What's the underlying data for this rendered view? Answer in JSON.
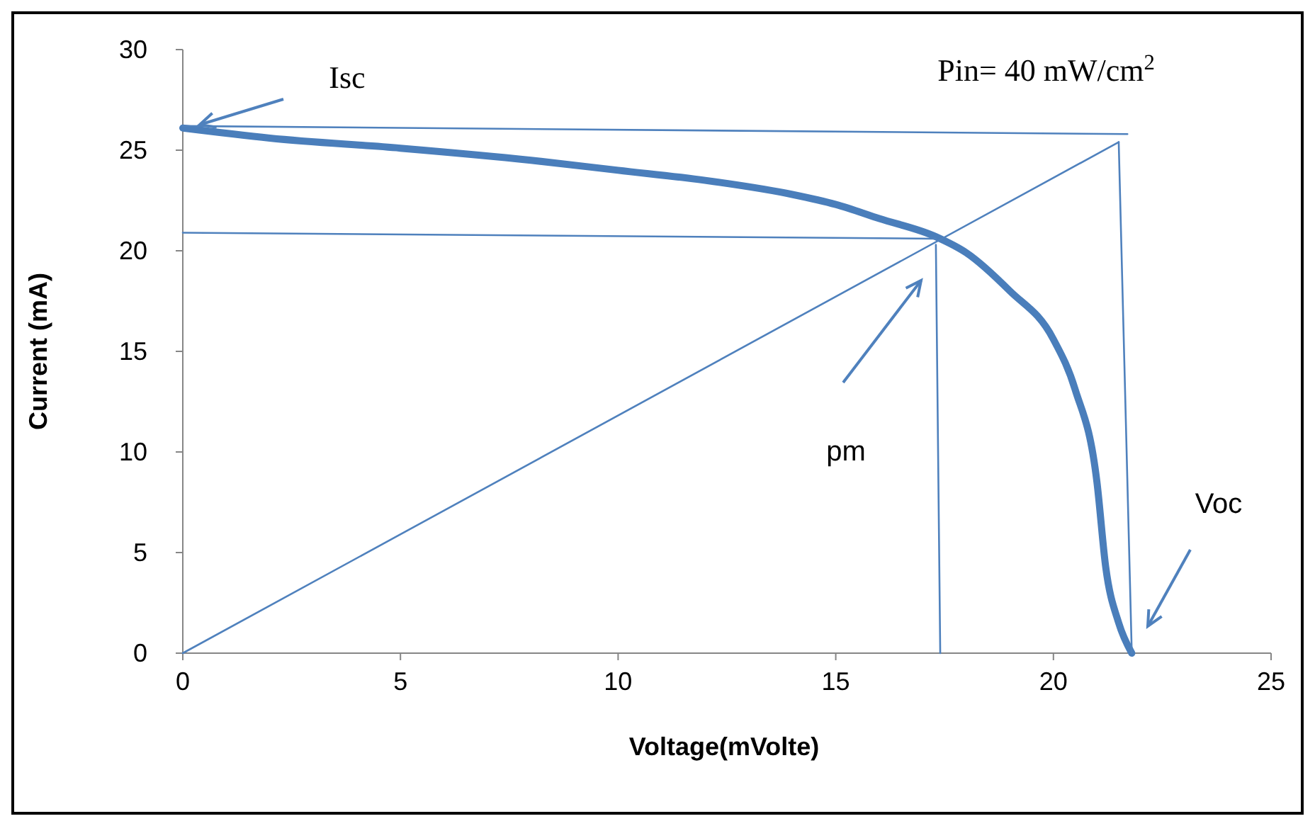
{
  "chart_data": {
    "type": "line",
    "xlabel": "Voltage(mVolte)",
    "ylabel": "Current (mA)",
    "xlim": [
      0,
      25
    ],
    "ylim": [
      0,
      30
    ],
    "xticks": [
      0,
      5,
      10,
      15,
      20,
      25
    ],
    "yticks": [
      0,
      5,
      10,
      15,
      20,
      25,
      30
    ],
    "grid": false,
    "marker": "none",
    "line_style": "solid",
    "series": [
      {
        "color": "#4a7ebb",
        "x": [
          0,
          2,
          5,
          8,
          10,
          12,
          14,
          15,
          16,
          17.3,
          18,
          19,
          20,
          20.5,
          21,
          21.2,
          21.5,
          21.8
        ],
        "values": [
          26.1,
          25.6,
          25.1,
          24.5,
          24.0,
          23.5,
          22.8,
          22.3,
          21.6,
          20.7,
          19.9,
          18,
          15.6,
          13.1,
          8.5,
          4.3,
          1.5,
          0
        ]
      },
      {
        "color": "#4f81bd",
        "x": [
          0,
          21.7
        ],
        "values": [
          26.2,
          25.8
        ]
      },
      {
        "color": "#4f81bd",
        "x": [
          0,
          17.3
        ],
        "values": [
          20.9,
          20.6
        ]
      },
      {
        "color": "#4f81bd",
        "x": [
          0,
          21.5
        ],
        "values": [
          0,
          25.4
        ]
      },
      {
        "color": "#4f81bd",
        "x": [
          17.3,
          17.4
        ],
        "values": [
          20.3,
          0
        ]
      },
      {
        "color": "#4f81bd",
        "x": [
          21.5,
          21.8
        ],
        "values": [
          25.4,
          0
        ]
      }
    ],
    "annotations": [
      "Isc",
      "pm",
      "Voc",
      "Pin= 40 mW/cm$^{2}$"
    ]
  }
}
